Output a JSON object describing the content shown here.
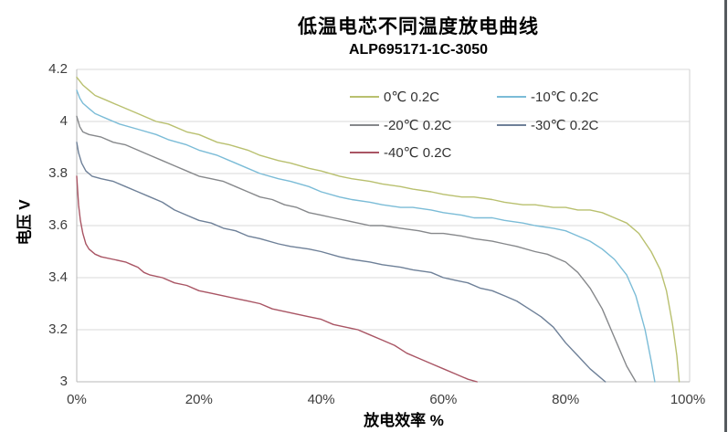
{
  "chart_data": {
    "type": "line",
    "title": "低温电芯不同温度放电曲线",
    "subtitle": "ALP695171-1C-3050",
    "xlabel": "放电效率 %",
    "ylabel": "电压 V",
    "xlim": [
      0,
      100
    ],
    "ylim": [
      3.0,
      4.2
    ],
    "grid": "horizontal-only",
    "legend_position": "inside-top-two-columns",
    "xticks": {
      "values": [
        0,
        20,
        40,
        60,
        80,
        100
      ],
      "labels": [
        "0%",
        "20%",
        "40%",
        "60%",
        "80%",
        "100%"
      ]
    },
    "yticks": {
      "values": [
        4.2,
        4.0,
        3.8,
        3.6,
        3.4,
        3.2,
        3.0
      ],
      "labels": [
        "4.2",
        "4",
        "3.8",
        "3.6",
        "3.4",
        "3.2",
        "3"
      ]
    },
    "axis_colors": {
      "gridline": "#dadada",
      "axis_line": "#b8b8b8",
      "plot_right_edge": "#d0d0d0"
    },
    "series": [
      {
        "name": "0℃ 0.2C",
        "temperature_c": 0,
        "rate": "0.2C",
        "color": "#b9c06f",
        "points": [
          [
            0,
            4.17
          ],
          [
            1,
            4.14
          ],
          [
            2,
            4.12
          ],
          [
            3,
            4.1
          ],
          [
            5,
            4.08
          ],
          [
            7,
            4.06
          ],
          [
            10,
            4.03
          ],
          [
            13,
            4.0
          ],
          [
            15,
            3.99
          ],
          [
            18,
            3.96
          ],
          [
            20,
            3.95
          ],
          [
            23,
            3.92
          ],
          [
            25,
            3.91
          ],
          [
            28,
            3.89
          ],
          [
            30,
            3.87
          ],
          [
            33,
            3.85
          ],
          [
            35,
            3.84
          ],
          [
            38,
            3.82
          ],
          [
            40,
            3.81
          ],
          [
            43,
            3.79
          ],
          [
            45,
            3.78
          ],
          [
            48,
            3.77
          ],
          [
            50,
            3.76
          ],
          [
            53,
            3.75
          ],
          [
            55,
            3.74
          ],
          [
            58,
            3.73
          ],
          [
            60,
            3.72
          ],
          [
            63,
            3.71
          ],
          [
            65,
            3.71
          ],
          [
            68,
            3.7
          ],
          [
            70,
            3.69
          ],
          [
            73,
            3.68
          ],
          [
            75,
            3.68
          ],
          [
            78,
            3.67
          ],
          [
            80,
            3.67
          ],
          [
            82,
            3.66
          ],
          [
            84,
            3.66
          ],
          [
            86,
            3.65
          ],
          [
            88,
            3.63
          ],
          [
            90,
            3.61
          ],
          [
            92,
            3.57
          ],
          [
            94,
            3.5
          ],
          [
            95.5,
            3.43
          ],
          [
            96.5,
            3.35
          ],
          [
            97.5,
            3.22
          ],
          [
            98.2,
            3.1
          ],
          [
            98.6,
            3.0
          ]
        ]
      },
      {
        "name": "-10℃ 0.2C",
        "temperature_c": -10,
        "rate": "0.2C",
        "color": "#7bbcd7",
        "points": [
          [
            0,
            4.12
          ],
          [
            0.5,
            4.09
          ],
          [
            1,
            4.07
          ],
          [
            2,
            4.05
          ],
          [
            3,
            4.03
          ],
          [
            5,
            4.01
          ],
          [
            7,
            3.99
          ],
          [
            10,
            3.97
          ],
          [
            13,
            3.95
          ],
          [
            15,
            3.93
          ],
          [
            18,
            3.91
          ],
          [
            20,
            3.89
          ],
          [
            23,
            3.87
          ],
          [
            25,
            3.85
          ],
          [
            28,
            3.82
          ],
          [
            30,
            3.8
          ],
          [
            33,
            3.78
          ],
          [
            35,
            3.77
          ],
          [
            38,
            3.75
          ],
          [
            40,
            3.73
          ],
          [
            43,
            3.71
          ],
          [
            45,
            3.7
          ],
          [
            48,
            3.69
          ],
          [
            50,
            3.68
          ],
          [
            53,
            3.67
          ],
          [
            55,
            3.67
          ],
          [
            58,
            3.66
          ],
          [
            60,
            3.65
          ],
          [
            63,
            3.64
          ],
          [
            65,
            3.63
          ],
          [
            68,
            3.63
          ],
          [
            70,
            3.62
          ],
          [
            73,
            3.61
          ],
          [
            75,
            3.6
          ],
          [
            78,
            3.59
          ],
          [
            80,
            3.58
          ],
          [
            82,
            3.56
          ],
          [
            84,
            3.54
          ],
          [
            86,
            3.51
          ],
          [
            88,
            3.47
          ],
          [
            90,
            3.41
          ],
          [
            91.5,
            3.33
          ],
          [
            93,
            3.2
          ],
          [
            94,
            3.08
          ],
          [
            94.6,
            3.0
          ]
        ]
      },
      {
        "name": "-20℃ 0.2C",
        "temperature_c": -20,
        "rate": "0.2C",
        "color": "#86888b",
        "points": [
          [
            0,
            4.02
          ],
          [
            0.5,
            3.98
          ],
          [
            1,
            3.96
          ],
          [
            2,
            3.95
          ],
          [
            4,
            3.94
          ],
          [
            6,
            3.92
          ],
          [
            8,
            3.91
          ],
          [
            10,
            3.89
          ],
          [
            12,
            3.87
          ],
          [
            14,
            3.85
          ],
          [
            16,
            3.83
          ],
          [
            18,
            3.81
          ],
          [
            20,
            3.79
          ],
          [
            22,
            3.78
          ],
          [
            24,
            3.77
          ],
          [
            26,
            3.75
          ],
          [
            28,
            3.73
          ],
          [
            30,
            3.71
          ],
          [
            32,
            3.7
          ],
          [
            34,
            3.68
          ],
          [
            36,
            3.67
          ],
          [
            38,
            3.65
          ],
          [
            40,
            3.64
          ],
          [
            42,
            3.63
          ],
          [
            44,
            3.62
          ],
          [
            46,
            3.61
          ],
          [
            48,
            3.6
          ],
          [
            50,
            3.6
          ],
          [
            53,
            3.59
          ],
          [
            56,
            3.58
          ],
          [
            58,
            3.57
          ],
          [
            60,
            3.57
          ],
          [
            63,
            3.56
          ],
          [
            65,
            3.55
          ],
          [
            68,
            3.54
          ],
          [
            70,
            3.53
          ],
          [
            72,
            3.52
          ],
          [
            75,
            3.5
          ],
          [
            77,
            3.49
          ],
          [
            79,
            3.47
          ],
          [
            80,
            3.46
          ],
          [
            82,
            3.42
          ],
          [
            84,
            3.36
          ],
          [
            86,
            3.28
          ],
          [
            88,
            3.17
          ],
          [
            90,
            3.06
          ],
          [
            91.5,
            3.0
          ]
        ]
      },
      {
        "name": "-30℃ 0.2C",
        "temperature_c": -30,
        "rate": "0.2C",
        "color": "#6e8098",
        "points": [
          [
            0,
            3.92
          ],
          [
            0.3,
            3.88
          ],
          [
            0.8,
            3.84
          ],
          [
            1.5,
            3.81
          ],
          [
            2.5,
            3.79
          ],
          [
            4,
            3.78
          ],
          [
            6,
            3.77
          ],
          [
            8,
            3.75
          ],
          [
            10,
            3.73
          ],
          [
            12,
            3.71
          ],
          [
            14,
            3.69
          ],
          [
            16,
            3.66
          ],
          [
            18,
            3.64
          ],
          [
            20,
            3.62
          ],
          [
            22,
            3.61
          ],
          [
            24,
            3.59
          ],
          [
            26,
            3.58
          ],
          [
            28,
            3.56
          ],
          [
            30,
            3.55
          ],
          [
            33,
            3.53
          ],
          [
            35,
            3.52
          ],
          [
            38,
            3.51
          ],
          [
            40,
            3.5
          ],
          [
            43,
            3.48
          ],
          [
            45,
            3.47
          ],
          [
            48,
            3.46
          ],
          [
            50,
            3.45
          ],
          [
            53,
            3.44
          ],
          [
            55,
            3.43
          ],
          [
            58,
            3.42
          ],
          [
            60,
            3.4
          ],
          [
            62,
            3.39
          ],
          [
            64,
            3.38
          ],
          [
            66,
            3.36
          ],
          [
            68,
            3.35
          ],
          [
            70,
            3.33
          ],
          [
            72,
            3.31
          ],
          [
            74,
            3.28
          ],
          [
            76,
            3.25
          ],
          [
            78,
            3.21
          ],
          [
            80,
            3.15
          ],
          [
            82,
            3.1
          ],
          [
            84,
            3.05
          ],
          [
            85.5,
            3.02
          ],
          [
            86.5,
            3.0
          ]
        ]
      },
      {
        "name": "-40℃ 0.2C",
        "temperature_c": -40,
        "rate": "0.2C",
        "color": "#a95564",
        "points": [
          [
            0,
            3.79
          ],
          [
            0.3,
            3.68
          ],
          [
            0.6,
            3.62
          ],
          [
            1,
            3.57
          ],
          [
            1.5,
            3.53
          ],
          [
            2,
            3.51
          ],
          [
            3,
            3.49
          ],
          [
            4,
            3.48
          ],
          [
            6,
            3.47
          ],
          [
            8,
            3.46
          ],
          [
            9,
            3.45
          ],
          [
            10,
            3.44
          ],
          [
            11,
            3.42
          ],
          [
            12,
            3.41
          ],
          [
            14,
            3.4
          ],
          [
            16,
            3.38
          ],
          [
            18,
            3.37
          ],
          [
            20,
            3.35
          ],
          [
            22,
            3.34
          ],
          [
            24,
            3.33
          ],
          [
            26,
            3.32
          ],
          [
            28,
            3.31
          ],
          [
            30,
            3.3
          ],
          [
            32,
            3.28
          ],
          [
            34,
            3.27
          ],
          [
            36,
            3.26
          ],
          [
            38,
            3.25
          ],
          [
            40,
            3.24
          ],
          [
            42,
            3.22
          ],
          [
            44,
            3.21
          ],
          [
            46,
            3.2
          ],
          [
            48,
            3.18
          ],
          [
            50,
            3.16
          ],
          [
            52,
            3.14
          ],
          [
            54,
            3.11
          ],
          [
            56,
            3.09
          ],
          [
            58,
            3.07
          ],
          [
            60,
            3.05
          ],
          [
            62,
            3.03
          ],
          [
            64,
            3.01
          ],
          [
            65.5,
            3.0
          ]
        ]
      }
    ]
  }
}
